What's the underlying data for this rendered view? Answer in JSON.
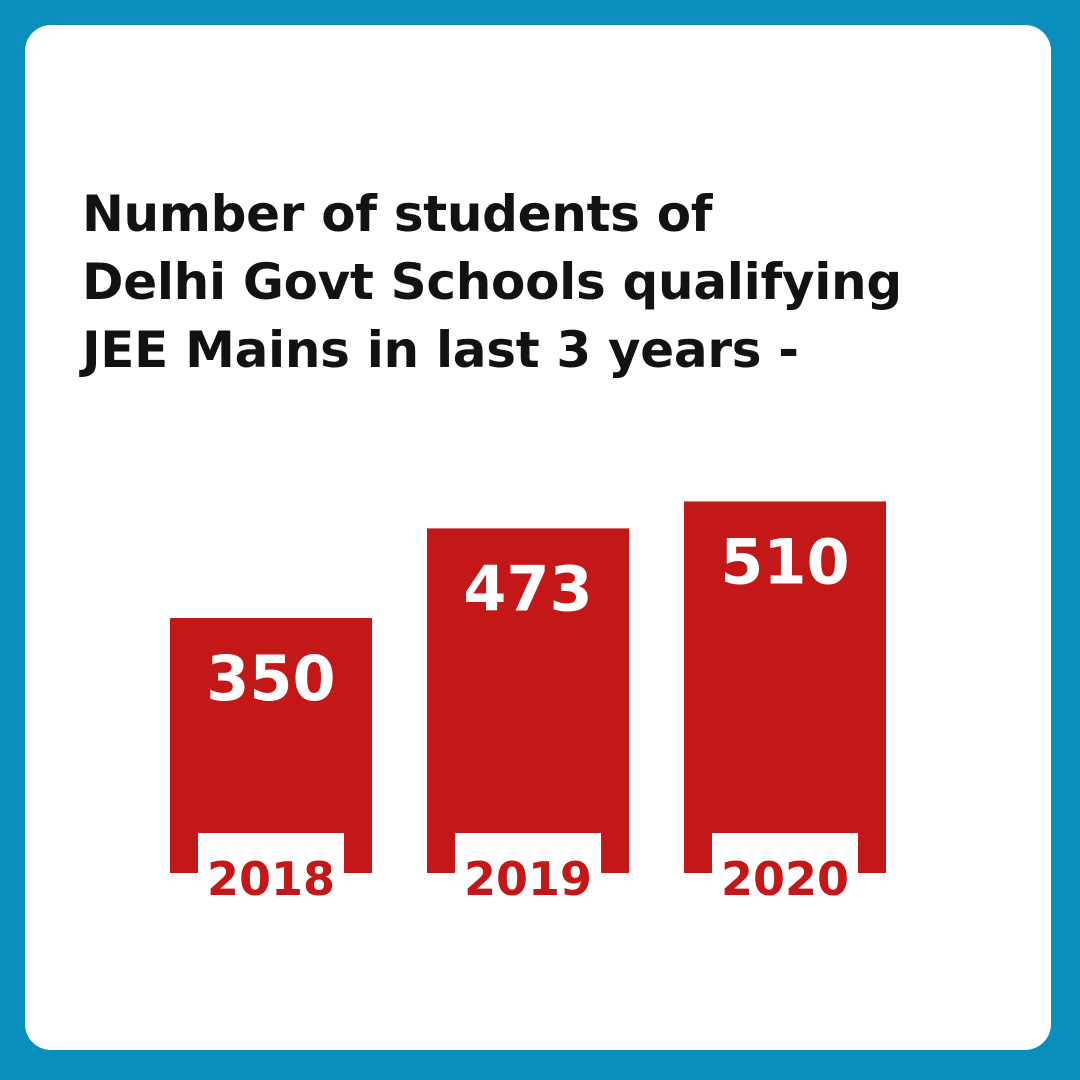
{
  "colors": {
    "frame": "#0a8fbd",
    "card": "#ffffff",
    "bar": "#c41717",
    "title_text": "#121212",
    "value_text": "#ffffff"
  },
  "title_lines": [
    "Number of students of",
    "Delhi Govt Schools qualifying",
    "JEE Mains in last 3 years -"
  ],
  "chart_data": {
    "type": "bar",
    "title": "Number of students of Delhi Govt Schools qualifying JEE Mains in last 3 years -",
    "categories": [
      "2018",
      "2019",
      "2020"
    ],
    "values": [
      350,
      473,
      510
    ],
    "data_labels": [
      "350",
      "473",
      "510"
    ],
    "grid": false,
    "legend": "none"
  }
}
